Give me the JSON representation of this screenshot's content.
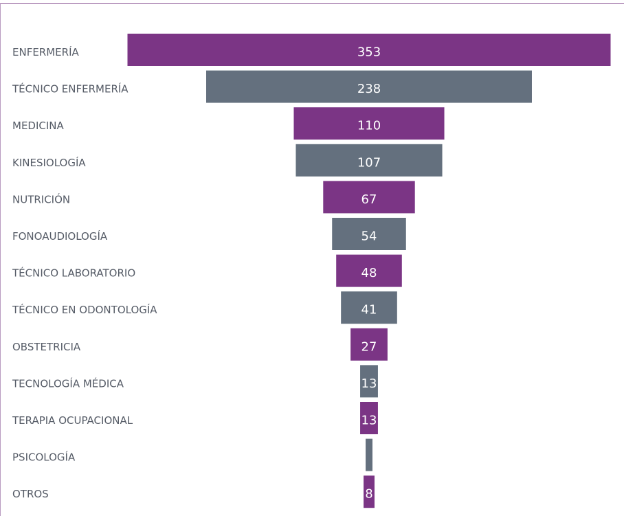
{
  "chart_data": {
    "type": "funnel",
    "categories": [
      "ENFERMERÍA",
      "TÉCNICO ENFERMERÍA",
      "MEDICINA",
      "KINESIOLOGÍA",
      "NUTRICIÓN",
      "FONOAUDIOLOGÍA",
      "TÉCNICO LABORATORIO",
      "TÉCNICO EN ODONTOLOGÍA",
      "OBSTETRICIA",
      "TECNOLOGÍA MÉDICA",
      "TERAPIA OCUPACIONAL",
      "PSICOLOGÍA",
      "OTROS"
    ],
    "values": [
      353,
      238,
      110,
      107,
      67,
      54,
      48,
      41,
      27,
      13,
      13,
      5,
      8
    ],
    "value_labels": [
      "353",
      "238",
      "110",
      "107",
      "67",
      "54",
      "48",
      "41",
      "27",
      "13",
      "13",
      null,
      "8"
    ],
    "colors": [
      "#7b3585",
      "#64707e"
    ],
    "xlim": [
      0,
      353
    ]
  }
}
